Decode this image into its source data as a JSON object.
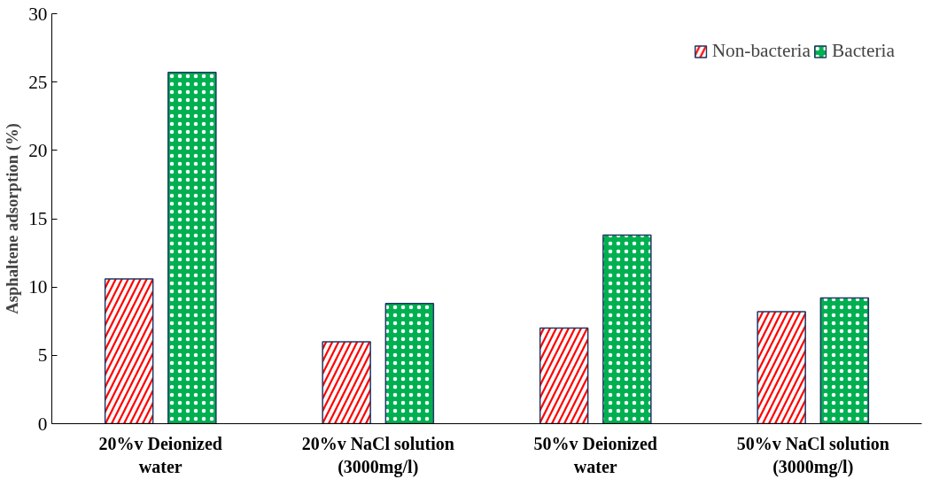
{
  "chart_data": {
    "type": "bar",
    "ylabel": "Asphaltene adsorption (%)",
    "categories": [
      "20%v Deionized\nwater",
      "20%v NaCl solution\n(3000mg/l)",
      "50%v Deionized\nwater",
      "50%v NaCl solution\n(3000mg/l)"
    ],
    "series": [
      {
        "name": "Non-bacteria",
        "color": "#ff0000",
        "values": [
          10.6,
          6.0,
          7.0,
          8.2
        ]
      },
      {
        "name": "Bacteria",
        "color": "#00b050",
        "values": [
          25.7,
          8.8,
          13.8,
          9.2
        ]
      }
    ],
    "ylim": [
      0,
      30
    ],
    "yticks": [
      0,
      5,
      10,
      15,
      20,
      25,
      30
    ],
    "grid": false,
    "legend": "top right"
  }
}
